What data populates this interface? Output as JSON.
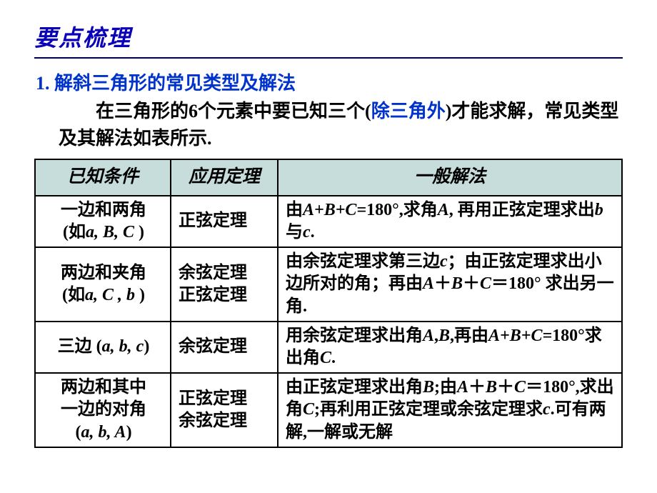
{
  "title": "要点梳理",
  "section": {
    "number": "1.",
    "heading": "解斜三角形的常见类型及解法"
  },
  "intro": {
    "pre": "在三角形的",
    "six": "6",
    "mid1": "个元素中要已知三个(",
    "highlight": "除三角外",
    "mid2": ")才能求解，常见类型及其解法如表所示."
  },
  "table": {
    "headers": [
      "已知条件",
      "应用定理",
      "一般解法"
    ],
    "rows": [
      {
        "cond_l1": "一边和两角",
        "cond_l2_pre": "(如",
        "cond_l2_vars": "a, B, C",
        "cond_l2_post": " )",
        "thm": "正弦定理",
        "sol_parts": [
          "由",
          "A",
          "+",
          "B",
          "+",
          "C",
          "=",
          "180°",
          ",求角",
          "A",
          ", 再用正弦定理求出",
          "b",
          "与",
          "c",
          "."
        ]
      },
      {
        "cond_l1": "两边和夹角",
        "cond_l2_pre": "(如",
        "cond_l2_vars": "a, C , b",
        "cond_l2_post": " )",
        "thm_l1": "余弦定理",
        "thm_l2": "正弦定理",
        "sol_parts": [
          "由余弦定理求第三边",
          "c",
          "；由正弦定理求出小边所对的角；再由",
          "A",
          "＋",
          "B",
          "＋",
          "C",
          "＝",
          "180°",
          " 求出另一角."
        ]
      },
      {
        "cond_pre": "三边 (",
        "cond_vars": "a, b, c",
        "cond_post": ")",
        "thm": "余弦定理",
        "sol_parts": [
          "用余弦定理求出角",
          "A",
          ",",
          "B",
          ",再由",
          "A",
          "+",
          "B",
          "+",
          "C",
          "=",
          "180°",
          "求出角",
          "C",
          "."
        ]
      },
      {
        "cond_l1": "两边和其中",
        "cond_l2": "一边的对角",
        "cond_l3_pre": "(",
        "cond_l3_vars": "a, b, A",
        "cond_l3_post": ")",
        "thm_l1": "正弦定理",
        "thm_l2": "余弦定理",
        "sol_parts": [
          "由正弦定理求出角",
          "B",
          ";由",
          "A",
          "＋",
          "B",
          "＋",
          "C",
          "＝",
          "180°",
          ",求出角",
          "C",
          ";再利用正弦定理或余弦定理求",
          "c",
          ".可有两解,一解或无解"
        ]
      }
    ]
  },
  "style": {
    "title_color": "#0a00b8",
    "section_color": "#0033cc",
    "header_bg": "#c6dddc",
    "border_color": "#000000",
    "text_color": "#000000",
    "title_fontsize": 32,
    "body_fontsize": 26,
    "cell_fontsize": 24
  }
}
